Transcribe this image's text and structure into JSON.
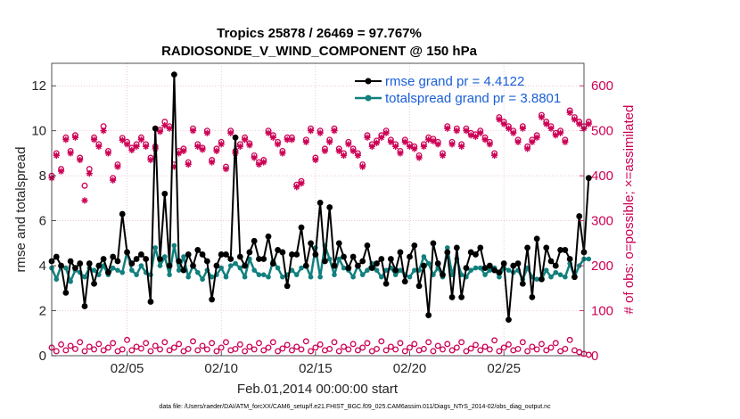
{
  "chart_data": {
    "type": "line",
    "title_line1": "Tropics 25878 / 26469 = 97.767%",
    "title_line2": "RADIOSONDE_V_WIND_COMPONENT @ 150 hPa",
    "xlabel": "Feb.01,2014 00:00:00 start",
    "ylabel_left": "rmse and totalspread",
    "ylabel_right": "# of obs: o=possible; ×=assimilated",
    "footnote": "data file: /Users/raeder/DAI/ATM_forcXX/CAM6_setup/f.e21.FHIST_BGC.f09_025.CAM6assim.011/Diags_NTrS_2014-02/obs_diag_output.nc",
    "xlim": [
      1,
      29.25
    ],
    "ylim_left": [
      0,
      13
    ],
    "ylim_right": [
      0,
      650
    ],
    "x_ticks": [
      {
        "value": 5,
        "label": "02/05"
      },
      {
        "value": 10,
        "label": "02/10"
      },
      {
        "value": 15,
        "label": "02/15"
      },
      {
        "value": 20,
        "label": "02/20"
      },
      {
        "value": 25,
        "label": "02/25"
      }
    ],
    "y_ticks_left": [
      {
        "value": 0,
        "label": "0"
      },
      {
        "value": 2,
        "label": "2"
      },
      {
        "value": 4,
        "label": "4"
      },
      {
        "value": 6,
        "label": "6"
      },
      {
        "value": 8,
        "label": "8"
      },
      {
        "value": 10,
        "label": "10"
      },
      {
        "value": 12,
        "label": "12"
      }
    ],
    "y_ticks_right": [
      {
        "value": 0,
        "label": "0"
      },
      {
        "value": 100,
        "label": "100"
      },
      {
        "value": 200,
        "label": "200"
      },
      {
        "value": 300,
        "label": "300"
      },
      {
        "value": 400,
        "label": "400"
      },
      {
        "value": 500,
        "label": "500"
      },
      {
        "value": 600,
        "label": "600"
      }
    ],
    "x_start": 1.0,
    "x_step": 0.25,
    "series": [
      {
        "name": "rmse",
        "legend": "rmse grand pr = 4.4122",
        "color": "#000000",
        "axis": "left",
        "values": [
          4.2,
          4.4,
          4.0,
          2.8,
          4.2,
          3.9,
          4.1,
          2.2,
          4.1,
          3.2,
          4.0,
          4.3,
          3.7,
          4.4,
          4.2,
          6.3,
          4.6,
          4.1,
          4.3,
          4.5,
          4.3,
          2.4,
          10.1,
          4.3,
          7.2,
          4.0,
          12.5,
          4.2,
          3.8,
          4.5,
          4.0,
          4.7,
          4.5,
          4.2,
          2.5,
          4.0,
          4.5,
          4.5,
          4.3,
          9.7,
          4.4,
          4.0,
          4.6,
          5.1,
          4.3,
          4.3,
          5.3,
          4.1,
          4.7,
          4.6,
          3.1,
          4.5,
          4.5,
          5.7,
          4.0,
          5.0,
          4.5,
          6.8,
          4.2,
          6.6,
          4.0,
          5.0,
          4.4,
          3.9,
          4.4,
          4.0,
          4.2,
          4.9,
          3.9,
          4.1,
          4.3,
          3.2,
          4.3,
          3.8,
          4.6,
          3.3,
          4.4,
          4.9,
          3.1,
          4.0,
          1.8,
          5.0,
          4.1,
          3.6,
          4.6,
          2.6,
          4.8,
          2.6,
          3.9,
          4.6,
          4.5,
          4.8,
          3.9,
          4.0,
          3.8,
          3.7,
          4.1,
          1.6,
          4.0,
          4.1,
          3.2,
          4.8,
          2.6,
          5.2,
          3.4,
          4.8,
          4.2,
          4.0,
          4.7,
          4.7,
          4.3,
          3.5,
          6.2,
          4.6,
          7.9
        ]
      },
      {
        "name": "totalspread",
        "legend": "totalspread grand pr = 3.8801",
        "color": "#12807e",
        "axis": "left",
        "values": [
          3.9,
          3.4,
          4.0,
          3.9,
          3.3,
          3.8,
          3.7,
          3.5,
          3.9,
          3.8,
          3.6,
          4.0,
          3.6,
          3.9,
          3.8,
          3.7,
          4.6,
          3.8,
          3.6,
          4.0,
          3.7,
          3.6,
          4.8,
          4.0,
          4.4,
          3.6,
          4.9,
          3.8,
          4.4,
          3.5,
          4.0,
          3.7,
          3.4,
          3.8,
          3.5,
          3.6,
          3.9,
          3.5,
          4.0,
          4.1,
          3.9,
          3.5,
          4.3,
          3.8,
          3.6,
          3.6,
          3.5,
          4.2,
          3.9,
          3.5,
          3.6,
          3.8,
          3.6,
          3.9,
          4.0,
          3.5,
          4.8,
          3.5,
          4.9,
          4.3,
          3.6,
          4.3,
          3.9,
          3.8,
          3.5,
          4.0,
          3.6,
          3.8,
          4.1,
          3.8,
          3.5,
          3.8,
          3.9,
          3.6,
          3.8,
          3.6,
          3.5,
          3.8,
          3.8,
          4.4,
          4.1,
          3.6,
          3.9,
          3.5,
          4.8,
          3.6,
          4.3,
          3.6,
          3.5,
          3.8,
          3.9,
          3.9,
          3.6,
          3.8,
          3.9,
          3.5,
          3.9,
          3.8,
          3.7,
          3.8,
          3.4,
          3.9,
          3.5,
          3.4,
          3.4,
          3.8,
          3.5,
          3.7,
          3.6,
          3.5,
          4.1,
          3.5,
          4.0,
          4.3,
          4.3
        ]
      },
      {
        "name": "obs_possible",
        "marker": "circle",
        "color": "#cc0055",
        "axis": "right",
        "values": [
          400,
          450,
          415,
          485,
          455,
          490,
          440,
          378,
          415,
          485,
          470,
          510,
          455,
          395,
          425,
          484,
          475,
          462,
          470,
          485,
          470,
          440,
          465,
          502,
          520,
          510,
          425,
          455,
          460,
          430,
          505,
          470,
          462,
          500,
          435,
          460,
          475,
          420,
          500,
          455,
          470,
          485,
          472,
          445,
          430,
          435,
          500,
          490,
          475,
          455,
          485,
          485,
          380,
          388,
          480,
          505,
          440,
          500,
          460,
          480,
          505,
          460,
          450,
          475,
          460,
          450,
          425,
          490,
          470,
          478,
          490,
          500,
          480,
          470,
          455,
          480,
          470,
          465,
          445,
          470,
          485,
          482,
          475,
          450,
          510,
          475,
          505,
          470,
          505,
          495,
          492,
          500,
          485,
          475,
          450,
          530,
          520,
          510,
          500,
          480,
          510,
          465,
          480,
          490,
          535,
          520,
          510,
          495,
          500,
          480,
          545,
          530,
          520,
          510,
          520
        ]
      },
      {
        "name": "obs_assimilated",
        "marker": "star",
        "color": "#cc0055",
        "axis": "right",
        "values": [
          395,
          445,
          410,
          480,
          450,
          485,
          435,
          345,
          405,
          480,
          465,
          500,
          450,
          390,
          420,
          479,
          470,
          457,
          465,
          480,
          465,
          435,
          460,
          498,
          512,
          505,
          420,
          450,
          455,
          425,
          500,
          465,
          458,
          495,
          430,
          455,
          470,
          415,
          495,
          450,
          465,
          480,
          468,
          440,
          425,
          430,
          495,
          485,
          470,
          450,
          480,
          480,
          375,
          383,
          475,
          500,
          435,
          495,
          455,
          475,
          500,
          455,
          445,
          470,
          455,
          445,
          420,
          485,
          465,
          473,
          485,
          495,
          475,
          465,
          450,
          475,
          465,
          460,
          440,
          465,
          480,
          477,
          470,
          445,
          505,
          470,
          500,
          465,
          500,
          490,
          487,
          495,
          480,
          470,
          445,
          525,
          515,
          505,
          495,
          475,
          505,
          460,
          475,
          485,
          530,
          515,
          505,
          490,
          495,
          475,
          540,
          525,
          515,
          505,
          515
        ]
      },
      {
        "name": "obs_possible_low",
        "marker": "circle",
        "color": "#cc0055",
        "axis": "right",
        "values": [
          18,
          10,
          25,
          12,
          22,
          15,
          30,
          10,
          20,
          14,
          26,
          12,
          18,
          28,
          10,
          14,
          35,
          12,
          20,
          16,
          28,
          10,
          22,
          14,
          30,
          12,
          18,
          26,
          10,
          15,
          32,
          12,
          22,
          14,
          28,
          10,
          18,
          30,
          12,
          15,
          25,
          10,
          20,
          14,
          28,
          12,
          18,
          30,
          10,
          16,
          24,
          12,
          20,
          14,
          32,
          10,
          18,
          25,
          12,
          15,
          30,
          10,
          20,
          14,
          26,
          12,
          18,
          28,
          10,
          15,
          32,
          12,
          20,
          14,
          28,
          10,
          18,
          26,
          12,
          15,
          30,
          10,
          22,
          14,
          26,
          12,
          18,
          30,
          10,
          16,
          24,
          12,
          20,
          14,
          34,
          10,
          18,
          25,
          12,
          15,
          30,
          10,
          20,
          14,
          26,
          12,
          18,
          28,
          10,
          15,
          35,
          12,
          8,
          4,
          2
        ]
      }
    ]
  }
}
